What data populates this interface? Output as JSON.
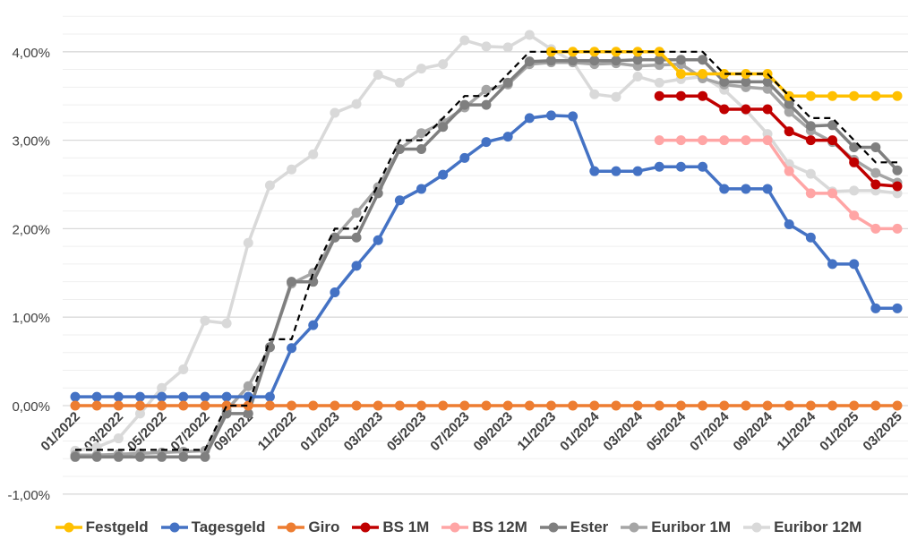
{
  "chart_data": {
    "type": "line",
    "title": "",
    "xlabel": "",
    "ylabel": "",
    "ylim": [
      -1.0,
      4.4
    ],
    "y_ticks": [
      -1,
      0,
      1,
      2,
      3,
      4
    ],
    "y_tick_labels": [
      "-1,00%",
      "0,00%",
      "1,00%",
      "2,00%",
      "3,00%",
      "4,00%"
    ],
    "y_minor_step": 0.2,
    "grid": true,
    "legend_position": "bottom",
    "x_tick_labels": [
      "01/2022",
      "03/2022",
      "05/2022",
      "07/2022",
      "09/2022",
      "11/2022",
      "01/2023",
      "03/2023",
      "05/2023",
      "07/2023",
      "09/2023",
      "11/2023",
      "01/2024",
      "03/2024",
      "05/2024",
      "07/2024",
      "09/2024",
      "11/2024",
      "01/2025",
      "03/2025"
    ],
    "x_tick_step_months": 2,
    "n_months": 39,
    "series": [
      {
        "name": "Euribor 12M",
        "color": "#D9D9D9",
        "legend": true,
        "values": [
          -0.51,
          -0.47,
          -0.37,
          -0.09,
          0.2,
          0.41,
          0.96,
          0.93,
          1.84,
          2.49,
          2.67,
          2.84,
          3.31,
          3.41,
          3.74,
          3.65,
          3.81,
          3.86,
          4.13,
          4.06,
          4.05,
          4.19,
          4.03,
          3.89,
          3.52,
          3.49,
          3.72,
          3.65,
          3.69,
          3.72,
          3.57,
          3.34,
          3.07,
          2.73,
          2.62,
          2.42,
          2.43,
          2.43,
          2.4
        ]
      },
      {
        "name": "Euribor 1M",
        "color": "#A5A5A5",
        "legend": true,
        "values": [
          -0.56,
          -0.56,
          -0.55,
          -0.54,
          -0.53,
          -0.52,
          -0.51,
          -0.05,
          0.22,
          0.66,
          1.38,
          1.5,
          1.9,
          2.18,
          2.47,
          2.9,
          3.08,
          3.2,
          3.37,
          3.57,
          3.63,
          3.86,
          3.88,
          3.88,
          3.86,
          3.87,
          3.84,
          3.85,
          3.86,
          3.7,
          3.63,
          3.6,
          3.58,
          3.32,
          3.11,
          2.98,
          2.78,
          2.63,
          2.52
        ]
      },
      {
        "name": "Ester",
        "color": "#7F7F7F",
        "legend": true,
        "values": [
          -0.58,
          -0.58,
          -0.58,
          -0.58,
          -0.58,
          -0.58,
          -0.58,
          -0.09,
          -0.09,
          0.66,
          1.4,
          1.4,
          1.9,
          1.9,
          2.4,
          2.9,
          2.9,
          3.15,
          3.4,
          3.4,
          3.65,
          3.89,
          3.9,
          3.9,
          3.9,
          3.9,
          3.91,
          3.91,
          3.91,
          3.91,
          3.66,
          3.66,
          3.66,
          3.41,
          3.16,
          3.17,
          2.92,
          2.92,
          2.66
        ]
      },
      {
        "name": "",
        "color": "#000000",
        "legend": false,
        "dashed": true,
        "markers": false,
        "values": [
          -0.5,
          -0.5,
          -0.5,
          -0.5,
          -0.5,
          -0.5,
          -0.5,
          0,
          0,
          0.75,
          0.75,
          1.5,
          2.0,
          2.0,
          2.5,
          3.0,
          3.0,
          3.25,
          3.5,
          3.5,
          3.75,
          4.0,
          4.0,
          4.0,
          4.0,
          4.0,
          4.0,
          4.0,
          4.0,
          4.0,
          3.75,
          3.75,
          3.75,
          3.5,
          3.25,
          3.25,
          3.0,
          2.75,
          2.75
        ]
      },
      {
        "name": "Festgeld",
        "color": "#FFC000",
        "legend": true,
        "values": [
          null,
          null,
          null,
          null,
          null,
          null,
          null,
          null,
          null,
          null,
          null,
          null,
          null,
          null,
          null,
          null,
          null,
          null,
          null,
          null,
          null,
          null,
          4.0,
          4.0,
          4.0,
          4.0,
          4.0,
          4.0,
          3.75,
          3.75,
          3.75,
          3.75,
          3.75,
          3.5,
          3.5,
          3.5,
          3.5,
          3.5,
          3.5
        ]
      },
      {
        "name": "BS 12M",
        "color": "#FFA5A5",
        "legend": true,
        "values": [
          null,
          null,
          null,
          null,
          null,
          null,
          null,
          null,
          null,
          null,
          null,
          null,
          null,
          null,
          null,
          null,
          null,
          null,
          null,
          null,
          null,
          null,
          null,
          null,
          null,
          null,
          null,
          3.0,
          3.0,
          3.0,
          3.0,
          3.0,
          3.0,
          2.65,
          2.4,
          2.4,
          2.15,
          2.0,
          2.0
        ]
      },
      {
        "name": "BS 1M",
        "color": "#C00000",
        "legend": true,
        "values": [
          null,
          null,
          null,
          null,
          null,
          null,
          null,
          null,
          null,
          null,
          null,
          null,
          null,
          null,
          null,
          null,
          null,
          null,
          null,
          null,
          null,
          null,
          null,
          null,
          null,
          null,
          null,
          3.5,
          3.5,
          3.5,
          3.35,
          3.35,
          3.35,
          3.1,
          3.0,
          3.0,
          2.75,
          2.5,
          2.48
        ]
      },
      {
        "name": "Tagesgeld",
        "color": "#4472C4",
        "legend": true,
        "values": [
          0.1,
          0.1,
          0.1,
          0.1,
          0.1,
          0.1,
          0.1,
          0.1,
          0.1,
          0.1,
          0.65,
          0.91,
          1.28,
          1.58,
          1.87,
          2.32,
          2.45,
          2.61,
          2.8,
          2.98,
          3.04,
          3.25,
          3.28,
          3.27,
          2.65,
          2.65,
          2.65,
          2.7,
          2.7,
          2.7,
          2.45,
          2.45,
          2.45,
          2.05,
          1.9,
          1.6,
          1.6,
          1.1,
          1.1
        ]
      },
      {
        "name": "Giro",
        "color": "#ED7D31",
        "legend": true,
        "values": [
          0,
          0,
          0,
          0,
          0,
          0,
          0,
          0,
          0,
          0,
          0,
          0,
          0,
          0,
          0,
          0,
          0,
          0,
          0,
          0,
          0,
          0,
          0,
          0,
          0,
          0,
          0,
          0,
          0,
          0,
          0,
          0,
          0,
          0,
          0,
          0,
          0,
          0,
          0
        ]
      }
    ],
    "legend_order": [
      "Festgeld",
      "Tagesgeld",
      "Giro",
      "BS 1M",
      "BS 12M",
      "Ester",
      "Euribor 1M",
      "Euribor 12M"
    ]
  }
}
